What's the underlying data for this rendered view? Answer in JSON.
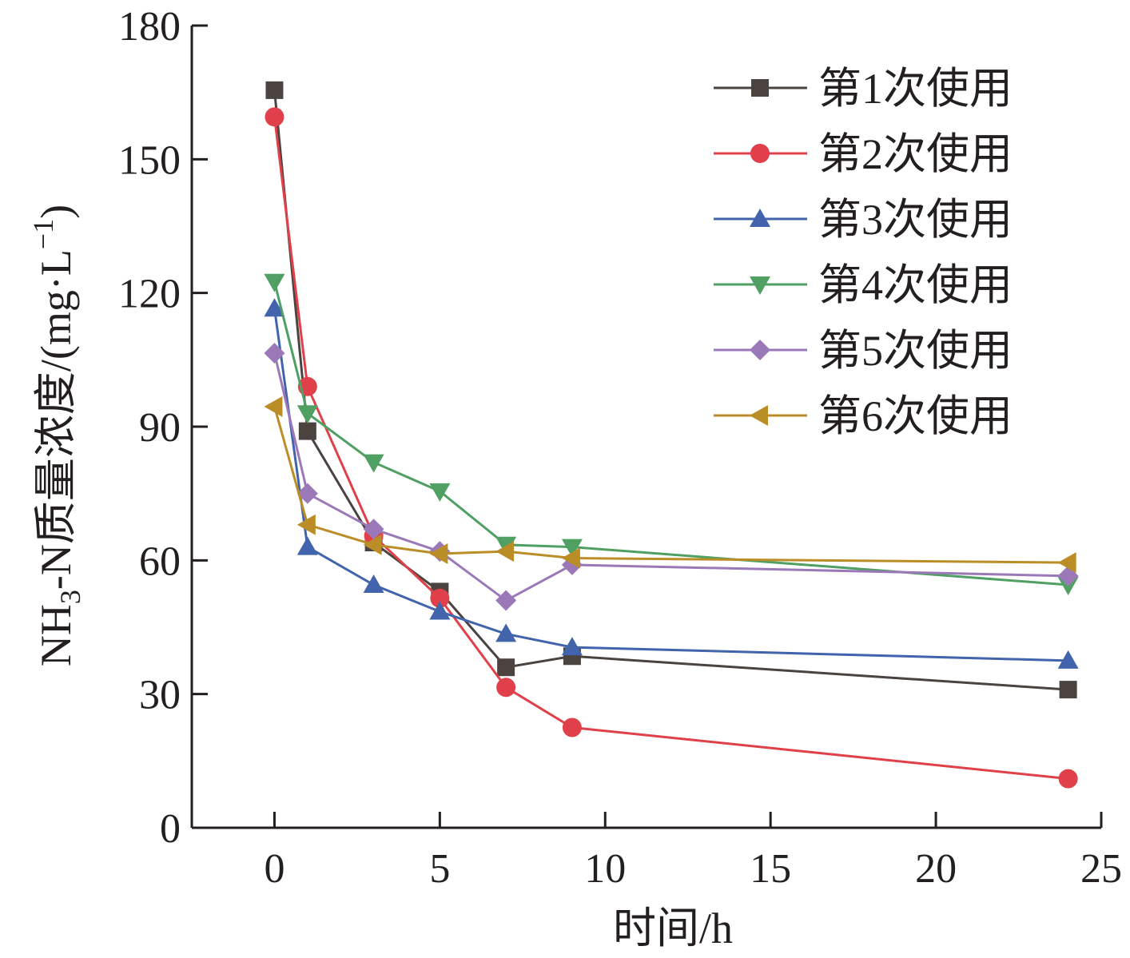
{
  "chart_data": {
    "type": "line",
    "xlabel": "时间/h",
    "ylabel": "NH3-N质量浓度/(mg·L-1)",
    "ylabel_parts": {
      "pre": "NH",
      "sub": "3",
      "mid": "-N质量浓度/(mg·L",
      "sup": "−1",
      "post": ")"
    },
    "xlim": [
      -2.5,
      25
    ],
    "ylim": [
      0,
      180
    ],
    "xticks": [
      0,
      5,
      10,
      15,
      20,
      25
    ],
    "yticks": [
      0,
      30,
      60,
      90,
      120,
      150,
      180
    ],
    "grid": false,
    "legend_position": "top-right",
    "series": [
      {
        "name": "第1次使用",
        "color": "#4a4340",
        "marker": "square",
        "x": [
          0,
          1,
          3,
          5,
          7,
          9,
          24
        ],
        "y": [
          165.5,
          89,
          64,
          53,
          36,
          38.5,
          31
        ]
      },
      {
        "name": "第2次使用",
        "color": "#e04049",
        "marker": "circle",
        "x": [
          0,
          1,
          3,
          5,
          7,
          9,
          24
        ],
        "y": [
          159.5,
          99,
          65.5,
          51.5,
          31.5,
          22.5,
          11
        ]
      },
      {
        "name": "第3次使用",
        "color": "#4264ad",
        "marker": "triangle-up",
        "x": [
          0,
          1,
          3,
          5,
          7,
          9,
          24
        ],
        "y": [
          116.5,
          63,
          54.5,
          48.5,
          43.5,
          40.5,
          37.5
        ]
      },
      {
        "name": "第4次使用",
        "color": "#4fa062",
        "marker": "triangle-down",
        "x": [
          0,
          1,
          3,
          5,
          7,
          9,
          24
        ],
        "y": [
          122.5,
          93,
          82,
          75.5,
          63.5,
          63,
          54.5
        ]
      },
      {
        "name": "第5次使用",
        "color": "#9b79b8",
        "marker": "diamond",
        "x": [
          0,
          1,
          3,
          5,
          7,
          9,
          24
        ],
        "y": [
          106.5,
          75,
          67,
          62,
          51,
          59,
          56.5
        ]
      },
      {
        "name": "第6次使用",
        "color": "#bb8d26",
        "marker": "triangle-left",
        "x": [
          0,
          1,
          3,
          5,
          7,
          9,
          24
        ],
        "y": [
          94.5,
          68,
          63.5,
          61.5,
          62,
          60.5,
          59.5
        ]
      }
    ]
  }
}
